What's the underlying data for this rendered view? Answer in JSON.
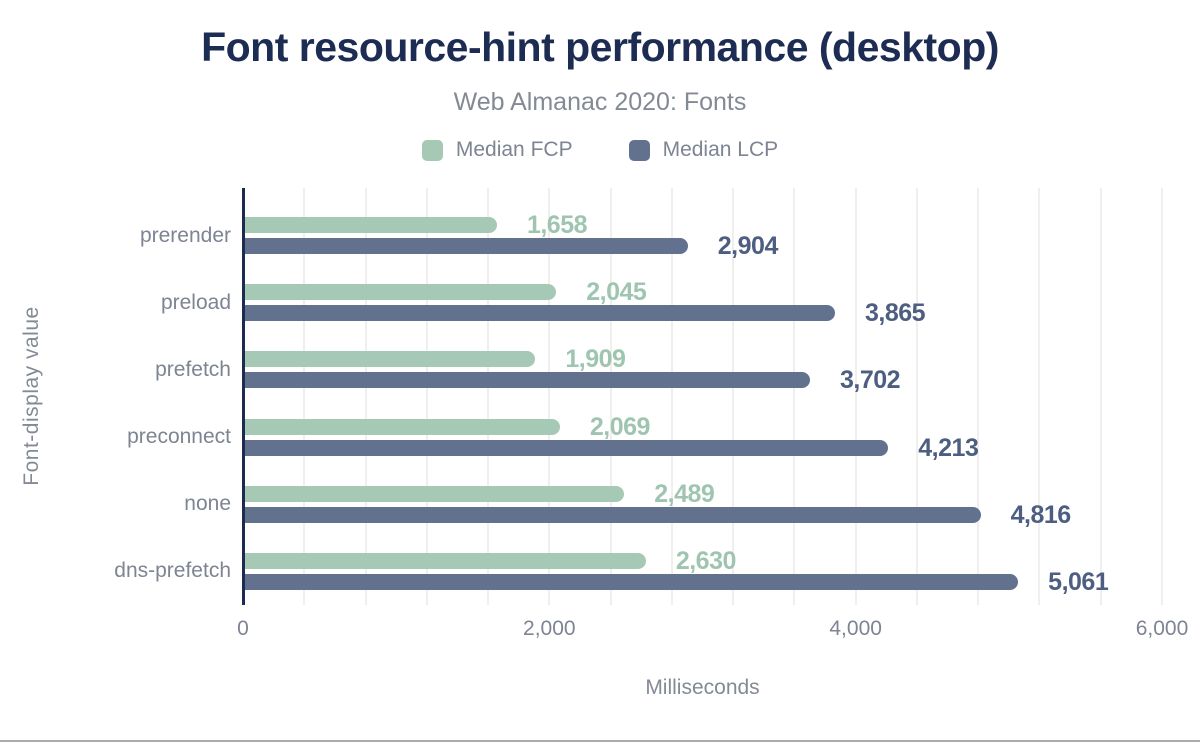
{
  "chart_data": {
    "type": "bar",
    "orientation": "horizontal",
    "title": "Font resource-hint performance (desktop)",
    "subtitle": "Web Almanac 2020: Fonts",
    "xlabel": "Milliseconds",
    "ylabel": "Font-display value",
    "xlim": [
      0,
      6000
    ],
    "x_ticks": [
      0,
      2000,
      4000,
      6000
    ],
    "x_tick_labels": [
      "0",
      "2,000",
      "4,000",
      "6,000"
    ],
    "minor_gridline_step": 400,
    "grid": "vertical-minor-gridlines",
    "legend_position": "top-center",
    "categories": [
      "prerender",
      "preload",
      "prefetch",
      "preconnect",
      "none",
      "dns-prefetch"
    ],
    "series": [
      {
        "name": "Median FCP",
        "color": "#a6c9b5",
        "label_color": "#9fc5b0",
        "values": [
          1658,
          2045,
          1909,
          2069,
          2489,
          2630
        ],
        "value_labels": [
          "1,658",
          "2,045",
          "1,909",
          "2,069",
          "2,489",
          "2,630"
        ]
      },
      {
        "name": "Median LCP",
        "color": "#61718e",
        "label_color": "#4d5e80",
        "values": [
          2904,
          3865,
          3702,
          4213,
          4816,
          5061
        ],
        "value_labels": [
          "2,904",
          "3,865",
          "3,702",
          "4,213",
          "4,816",
          "5,061"
        ]
      }
    ]
  },
  "colors": {
    "title": "#1d2c52",
    "muted_text": "#7d8492",
    "axis_line": "#1c2b4e",
    "gridline": "#f1eeee",
    "background": "#ffffff",
    "bottom_border": "#a9abad"
  }
}
